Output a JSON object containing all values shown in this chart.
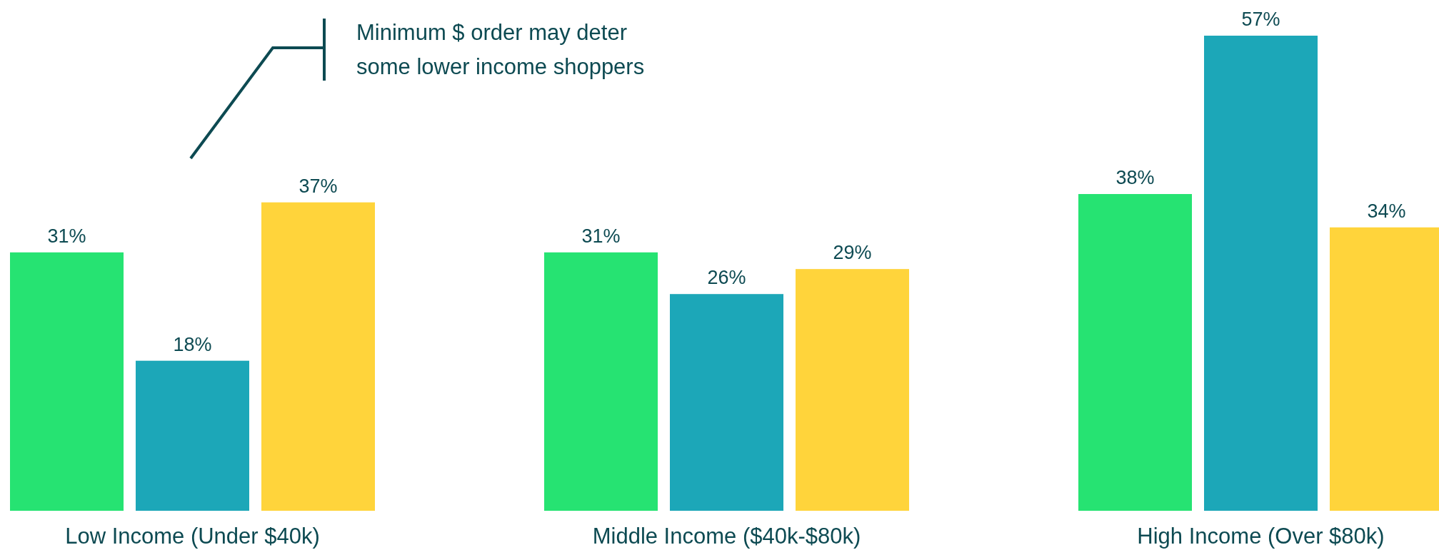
{
  "chart_data": {
    "type": "bar",
    "categories": [
      "Low Income (Under $40k)",
      "Middle Income ($40k-$80k)",
      "High Income (Over $80k)"
    ],
    "series": [
      {
        "color": "#26e372",
        "values": [
          31,
          31,
          38
        ],
        "value_labels": [
          "31%",
          "31%",
          "38%"
        ]
      },
      {
        "color": "#1ca7b8",
        "values": [
          18,
          26,
          57
        ],
        "value_labels": [
          "18%",
          "26%",
          "57%"
        ]
      },
      {
        "color": "#ffd43b",
        "values": [
          37,
          29,
          34
        ],
        "value_labels": [
          "37%",
          "29%",
          "34%"
        ]
      }
    ],
    "annotations": [
      "Minimum $ order may deter some lower income shoppers"
    ]
  }
}
